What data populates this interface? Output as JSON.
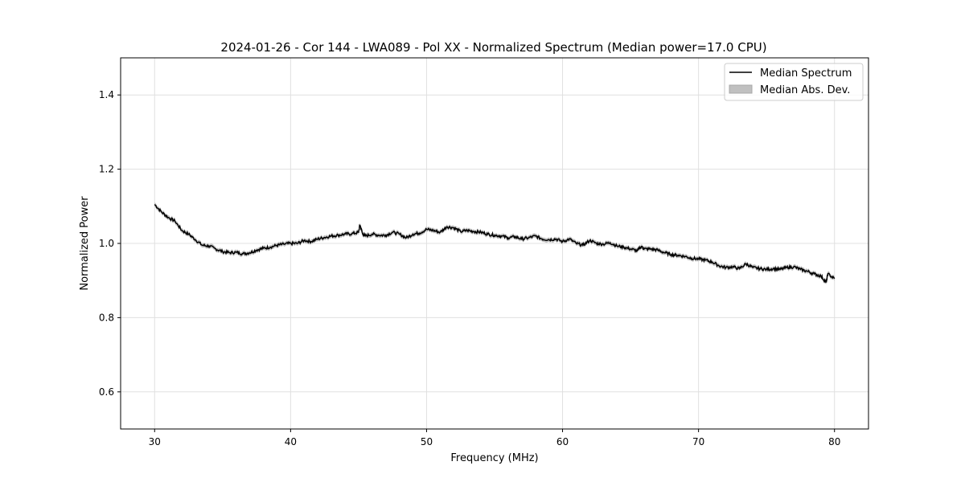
{
  "chart_data": {
    "type": "line",
    "title": "2024-01-26 - Cor 144 - LWA089 - Pol XX - Normalized Spectrum (Median power=17.0 CPU)",
    "xlabel": "Frequency (MHz)",
    "ylabel": "Normalized Power",
    "xlim": [
      27.5,
      82.5
    ],
    "ylim": [
      0.5,
      1.5
    ],
    "xticks": [
      30,
      40,
      50,
      60,
      70,
      80
    ],
    "yticks": [
      0.6,
      0.8,
      1.0,
      1.2,
      1.4
    ],
    "xtick_labels": [
      "30",
      "40",
      "50",
      "60",
      "70",
      "80"
    ],
    "ytick_labels": [
      "0.6",
      "0.8",
      "1.0",
      "1.2",
      "1.4"
    ],
    "grid": true,
    "legend_position": "top-right",
    "legend": [
      "Median Spectrum",
      "Median Abs. Dev."
    ],
    "colors": {
      "line": "#000000",
      "band": "#c0c0c0",
      "grid": "#e0e0e0"
    },
    "mad": 0.006,
    "x": [
      30,
      30.5,
      31,
      31.5,
      32,
      32.5,
      33,
      33.5,
      34,
      34.5,
      35,
      35.5,
      36,
      36.5,
      37,
      37.5,
      38,
      38.5,
      39,
      39.5,
      40,
      40.5,
      41,
      41.5,
      42,
      42.5,
      43,
      43.5,
      44,
      44.5,
      45,
      45.1,
      45.3,
      45.5,
      46,
      46.5,
      47,
      47.5,
      48,
      48.5,
      49,
      49.5,
      50,
      50.5,
      51,
      51.5,
      52,
      52.5,
      53,
      53.5,
      54,
      54.5,
      55,
      55.5,
      56,
      56.5,
      57,
      57.5,
      58,
      58.5,
      59,
      59.5,
      60,
      60.5,
      61,
      61.5,
      62,
      62.5,
      63,
      63.5,
      64,
      64.5,
      65,
      65.5,
      65.8,
      66,
      66.5,
      67,
      67.5,
      68,
      68.5,
      69,
      69.5,
      70,
      70.5,
      71,
      71.5,
      72,
      72.5,
      73,
      73.5,
      74,
      74.5,
      75,
      75.5,
      76,
      76.5,
      77,
      77.5,
      78,
      78.5,
      79,
      79.4,
      79.5,
      80
    ],
    "y": [
      1.105,
      1.085,
      1.07,
      1.06,
      1.035,
      1.025,
      1.01,
      0.995,
      0.993,
      0.985,
      0.978,
      0.975,
      0.976,
      0.972,
      0.975,
      0.982,
      0.987,
      0.99,
      0.995,
      0.998,
      1.0,
      1.0,
      1.008,
      1.005,
      1.012,
      1.016,
      1.02,
      1.022,
      1.025,
      1.026,
      1.03,
      1.05,
      1.025,
      1.02,
      1.025,
      1.022,
      1.022,
      1.03,
      1.025,
      1.015,
      1.025,
      1.028,
      1.038,
      1.035,
      1.03,
      1.045,
      1.042,
      1.032,
      1.035,
      1.032,
      1.03,
      1.025,
      1.022,
      1.02,
      1.015,
      1.018,
      1.012,
      1.015,
      1.02,
      1.012,
      1.01,
      1.012,
      1.005,
      1.012,
      1.0,
      0.995,
      1.008,
      1.0,
      0.998,
      1.002,
      0.993,
      0.99,
      0.985,
      0.98,
      0.992,
      0.985,
      0.985,
      0.982,
      0.975,
      0.97,
      0.968,
      0.965,
      0.96,
      0.958,
      0.955,
      0.95,
      0.94,
      0.935,
      0.937,
      0.932,
      0.945,
      0.935,
      0.932,
      0.93,
      0.932,
      0.93,
      0.935,
      0.937,
      0.93,
      0.925,
      0.918,
      0.912,
      0.895,
      0.918,
      0.905
    ]
  }
}
